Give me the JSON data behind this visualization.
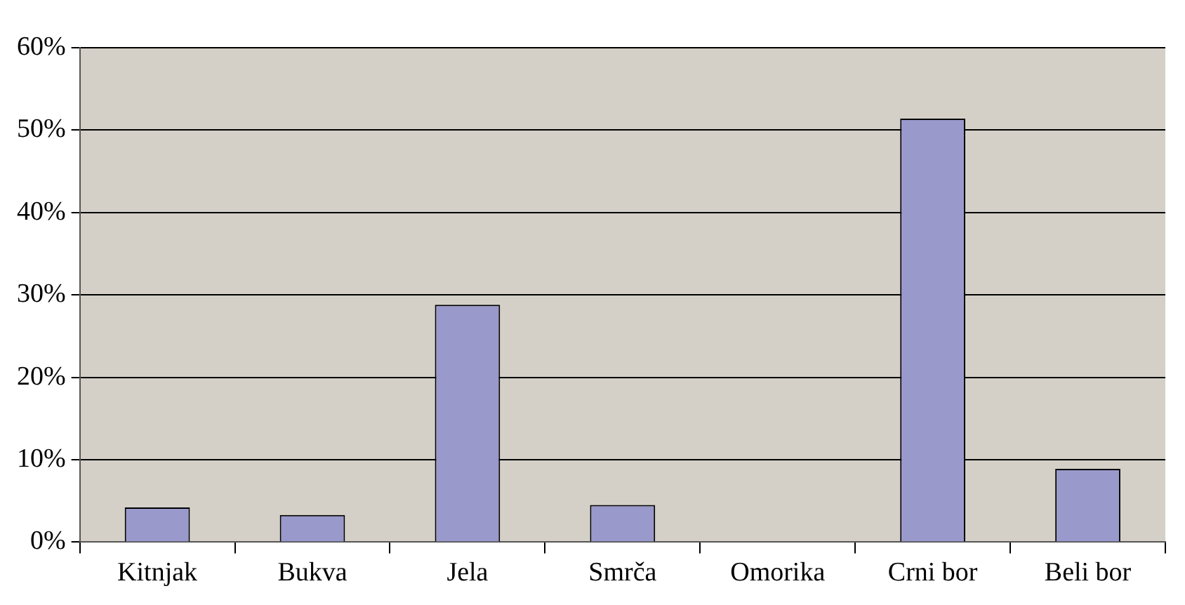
{
  "chart_data": {
    "type": "bar",
    "categories": [
      "Kitnjak",
      "Bukva",
      "Jela",
      "Smrča",
      "Omorika",
      "Crni bor",
      "Beli bor"
    ],
    "series": [
      {
        "color": "#9999cc",
        "values": [
          4.2,
          3.3,
          28.8,
          4.5,
          0,
          51.4,
          8.9
        ]
      }
    ],
    "ylim": [
      0,
      60
    ],
    "yticks": [
      {
        "value": 0,
        "label": "0%"
      },
      {
        "value": 10,
        "label": "10%"
      },
      {
        "value": 20,
        "label": "20%"
      },
      {
        "value": 30,
        "label": "30%"
      },
      {
        "value": 40,
        "label": "40%"
      },
      {
        "value": 50,
        "label": "50%"
      },
      {
        "value": 60,
        "label": "60%"
      }
    ],
    "grid": "y",
    "legend": false
  }
}
